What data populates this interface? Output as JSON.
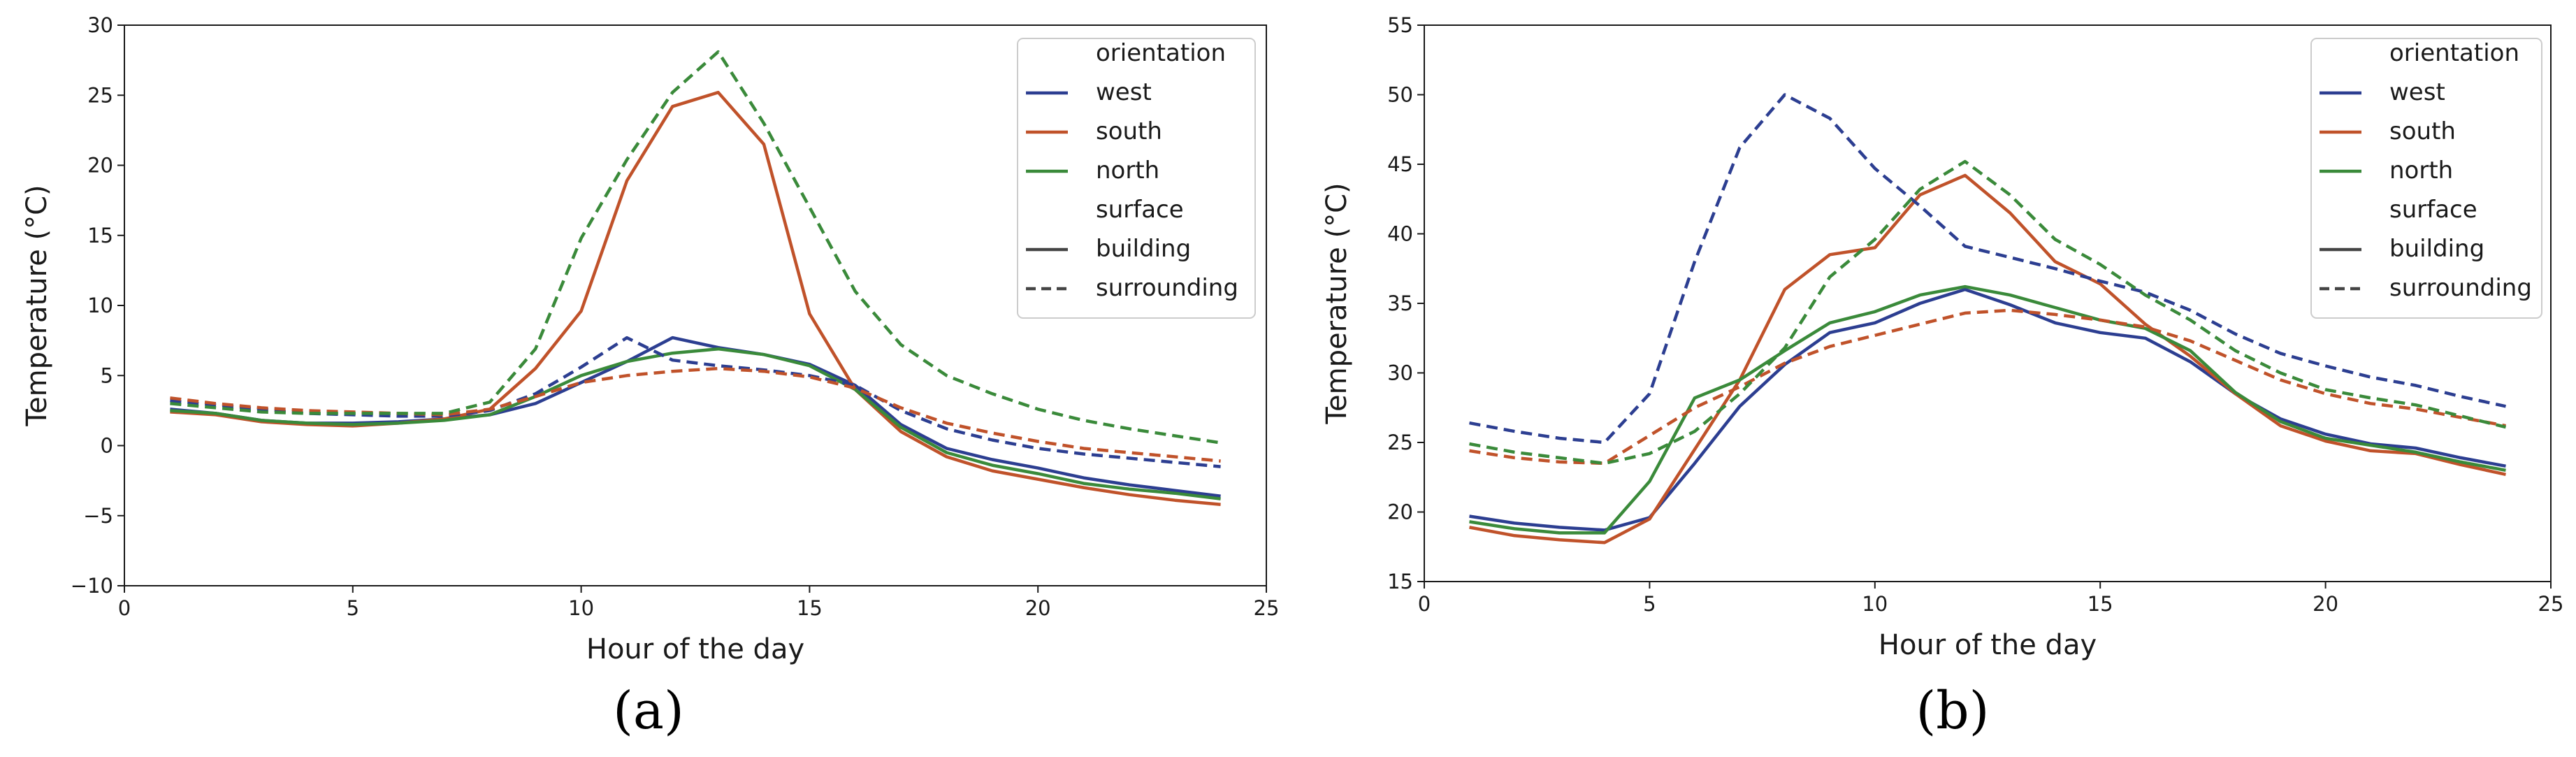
{
  "chart_data": [
    {
      "type": "line",
      "panel_label": "(a)",
      "xlabel": "Hour of the day",
      "ylabel": "Temperature (°C)",
      "xlim": [
        0,
        25
      ],
      "ylim": [
        -10,
        30
      ],
      "xticks": [
        0,
        5,
        10,
        15,
        20,
        25
      ],
      "yticks": [
        -10,
        -5,
        0,
        5,
        10,
        15,
        20,
        25,
        30
      ],
      "legend": {
        "position": "top-right",
        "entries": [
          {
            "kind": "header",
            "label": "orientation"
          },
          {
            "kind": "line",
            "label": "west",
            "color": "#2c3e91",
            "dash": "solid"
          },
          {
            "kind": "line",
            "label": "south",
            "color": "#c0522a",
            "dash": "solid"
          },
          {
            "kind": "line",
            "label": "north",
            "color": "#3a8a3a",
            "dash": "solid"
          },
          {
            "kind": "header",
            "label": "surface"
          },
          {
            "kind": "line",
            "label": "building",
            "color": "#444444",
            "dash": "solid"
          },
          {
            "kind": "line",
            "label": "surrounding",
            "color": "#444444",
            "dash": "dashed"
          }
        ]
      },
      "x": [
        1,
        2,
        3,
        4,
        5,
        6,
        7,
        8,
        9,
        10,
        11,
        12,
        13,
        14,
        15,
        16,
        17,
        18,
        19,
        20,
        21,
        22,
        23,
        24
      ],
      "series": [
        {
          "name": "west building",
          "orientation": "west",
          "surface": "building",
          "color": "#2c3e91",
          "dash": "solid",
          "values": [
            2.6,
            2.3,
            1.8,
            1.6,
            1.6,
            1.7,
            1.9,
            2.2,
            3.0,
            4.5,
            6.0,
            7.7,
            7.0,
            6.5,
            5.8,
            4.3,
            1.5,
            -0.2,
            -1.0,
            -1.6,
            -2.3,
            -2.8,
            -3.2,
            -3.6
          ]
        },
        {
          "name": "south building",
          "orientation": "south",
          "surface": "building",
          "color": "#c0522a",
          "dash": "solid",
          "values": [
            2.4,
            2.2,
            1.7,
            1.5,
            1.4,
            1.6,
            1.9,
            2.6,
            5.5,
            9.6,
            18.9,
            24.2,
            25.2,
            21.5,
            9.4,
            4.0,
            1.0,
            -0.8,
            -1.8,
            -2.4,
            -3.0,
            -3.5,
            -3.9,
            -4.2
          ]
        },
        {
          "name": "north building",
          "orientation": "north",
          "surface": "building",
          "color": "#3a8a3a",
          "dash": "solid",
          "values": [
            2.5,
            2.3,
            1.8,
            1.6,
            1.5,
            1.6,
            1.8,
            2.2,
            3.5,
            5.0,
            6.0,
            6.6,
            6.9,
            6.5,
            5.7,
            4.0,
            1.3,
            -0.5,
            -1.4,
            -2.0,
            -2.7,
            -3.1,
            -3.4,
            -3.8
          ]
        },
        {
          "name": "west surrounding",
          "orientation": "west",
          "surface": "surrounding",
          "color": "#2c3e91",
          "dash": "dashed",
          "values": [
            3.2,
            2.9,
            2.6,
            2.3,
            2.2,
            2.1,
            2.1,
            2.5,
            3.7,
            5.6,
            7.7,
            6.1,
            5.7,
            5.4,
            5.0,
            4.3,
            2.5,
            1.2,
            0.4,
            -0.2,
            -0.6,
            -0.9,
            -1.2,
            -1.5
          ]
        },
        {
          "name": "south surrounding",
          "orientation": "south",
          "surface": "surrounding",
          "color": "#c0522a",
          "dash": "dashed",
          "values": [
            3.4,
            3.0,
            2.7,
            2.5,
            2.4,
            2.3,
            2.2,
            2.6,
            3.5,
            4.5,
            5.0,
            5.3,
            5.5,
            5.3,
            4.9,
            4.1,
            2.7,
            1.6,
            0.9,
            0.3,
            -0.2,
            -0.5,
            -0.8,
            -1.1
          ]
        },
        {
          "name": "north surrounding",
          "orientation": "north",
          "surface": "surrounding",
          "color": "#3a8a3a",
          "dash": "dashed",
          "values": [
            3.0,
            2.7,
            2.4,
            2.3,
            2.3,
            2.3,
            2.3,
            3.1,
            6.9,
            14.8,
            20.4,
            25.2,
            28.1,
            23.0,
            17.0,
            11.0,
            7.2,
            5.0,
            3.7,
            2.6,
            1.8,
            1.2,
            0.7,
            0.2
          ]
        }
      ]
    },
    {
      "type": "line",
      "panel_label": "(b)",
      "xlabel": "Hour of the day",
      "ylabel": "Temperature (°C)",
      "xlim": [
        0,
        25
      ],
      "ylim": [
        15,
        55
      ],
      "xticks": [
        0,
        5,
        10,
        15,
        20,
        25
      ],
      "yticks": [
        15,
        20,
        25,
        30,
        35,
        40,
        45,
        50,
        55
      ],
      "legend": {
        "position": "top-right",
        "entries": [
          {
            "kind": "header",
            "label": "orientation"
          },
          {
            "kind": "line",
            "label": "west",
            "color": "#2c3e91",
            "dash": "solid"
          },
          {
            "kind": "line",
            "label": "south",
            "color": "#c0522a",
            "dash": "solid"
          },
          {
            "kind": "line",
            "label": "north",
            "color": "#3a8a3a",
            "dash": "solid"
          },
          {
            "kind": "header",
            "label": "surface"
          },
          {
            "kind": "line",
            "label": "building",
            "color": "#444444",
            "dash": "solid"
          },
          {
            "kind": "line",
            "label": "surrounding",
            "color": "#444444",
            "dash": "dashed"
          }
        ]
      },
      "x": [
        1,
        2,
        3,
        4,
        5,
        6,
        7,
        8,
        9,
        10,
        11,
        12,
        13,
        14,
        15,
        16,
        17,
        18,
        19,
        20,
        21,
        22,
        23,
        24
      ],
      "series": [
        {
          "name": "west building",
          "orientation": "west",
          "surface": "building",
          "color": "#2c3e91",
          "dash": "solid",
          "values": [
            19.7,
            19.2,
            18.9,
            18.7,
            19.6,
            23.5,
            27.6,
            30.6,
            32.9,
            33.6,
            35.0,
            36.0,
            34.9,
            33.6,
            32.9,
            32.5,
            30.8,
            28.5,
            26.7,
            25.6,
            24.9,
            24.6,
            23.9,
            23.3
          ]
        },
        {
          "name": "south building",
          "orientation": "south",
          "surface": "building",
          "color": "#c0522a",
          "dash": "solid",
          "values": [
            18.9,
            18.3,
            18.0,
            17.8,
            19.5,
            24.5,
            29.5,
            36.0,
            38.5,
            39.0,
            42.8,
            44.2,
            41.5,
            38.0,
            36.4,
            33.5,
            31.2,
            28.5,
            26.2,
            25.1,
            24.4,
            24.2,
            23.4,
            22.7
          ]
        },
        {
          "name": "north building",
          "orientation": "north",
          "surface": "building",
          "color": "#3a8a3a",
          "dash": "solid",
          "values": [
            19.3,
            18.8,
            18.5,
            18.5,
            22.2,
            28.2,
            29.5,
            31.6,
            33.6,
            34.4,
            35.6,
            36.2,
            35.6,
            34.7,
            33.8,
            33.2,
            31.6,
            28.6,
            26.5,
            25.3,
            24.8,
            24.3,
            23.6,
            23.0
          ]
        },
        {
          "name": "west surrounding",
          "orientation": "west",
          "surface": "surrounding",
          "color": "#2c3e91",
          "dash": "dashed",
          "values": [
            26.4,
            25.8,
            25.3,
            25.0,
            28.5,
            38.0,
            46.2,
            50.0,
            48.3,
            44.7,
            42.0,
            39.1,
            38.3,
            37.5,
            36.6,
            35.8,
            34.5,
            32.8,
            31.4,
            30.5,
            29.7,
            29.1,
            28.3,
            27.6
          ]
        },
        {
          "name": "south surrounding",
          "orientation": "south",
          "surface": "surrounding",
          "color": "#c0522a",
          "dash": "dashed",
          "values": [
            24.4,
            23.9,
            23.6,
            23.5,
            25.5,
            27.5,
            29.0,
            30.7,
            31.9,
            32.7,
            33.5,
            34.3,
            34.5,
            34.2,
            33.8,
            33.3,
            32.3,
            30.9,
            29.5,
            28.5,
            27.8,
            27.4,
            26.8,
            26.2
          ]
        },
        {
          "name": "north surrounding",
          "orientation": "north",
          "surface": "surrounding",
          "color": "#3a8a3a",
          "dash": "dashed",
          "values": [
            24.9,
            24.3,
            23.9,
            23.5,
            24.2,
            25.8,
            28.5,
            31.8,
            36.9,
            39.6,
            43.2,
            45.2,
            42.8,
            39.6,
            37.8,
            35.6,
            33.8,
            31.6,
            30.0,
            28.8,
            28.2,
            27.7,
            26.9,
            26.1
          ]
        }
      ]
    }
  ]
}
